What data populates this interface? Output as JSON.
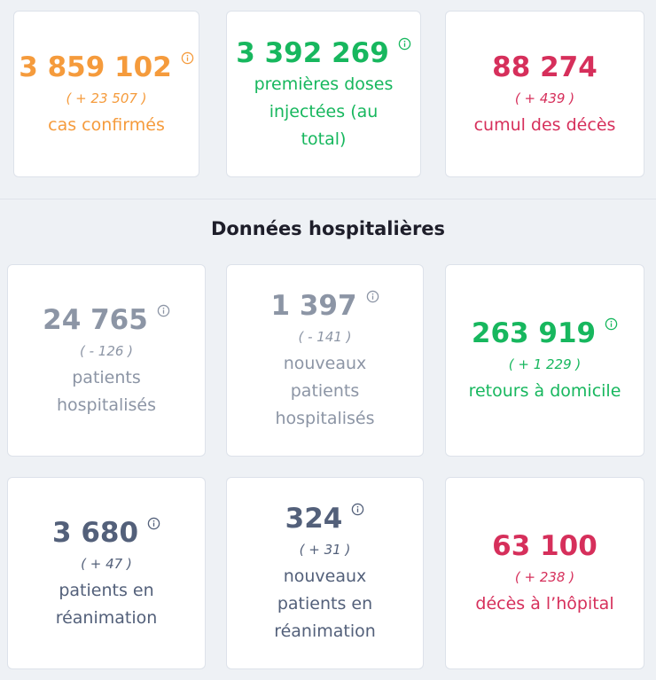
{
  "top_cards": [
    {
      "value": "3 859 102",
      "delta": "( + 23 507 )",
      "label": "cas confirmés",
      "color": "#f59b3c",
      "info": true
    },
    {
      "value": "3 392 269",
      "label": "premières doses injectées (au total)",
      "color": "#17b75e",
      "info": true
    },
    {
      "value": "88 274",
      "delta": "( + 439 )",
      "label": "cumul des décès",
      "color": "#d62f5b",
      "info": false
    }
  ],
  "section_title": "Données hospitalières",
  "hospital_cards": [
    {
      "value": "24 765",
      "delta": "( - 126 )",
      "label": "patients hospitalisés",
      "color": "#8c95a5",
      "info": true
    },
    {
      "value": "1 397",
      "delta": "( - 141 )",
      "label": "nouveaux patients hospitalisés",
      "color": "#8c95a5",
      "info": true
    },
    {
      "value": "263 919",
      "delta": "( + 1 229 )",
      "label": "retours à domicile",
      "color": "#17b75e",
      "info": true
    },
    {
      "value": "3 680",
      "delta": "( + 47 )",
      "label": "patients en réanimation",
      "color": "#53607a",
      "info": true
    },
    {
      "value": "324",
      "delta": "( + 31 )",
      "label": "nouveaux patients en réanimation",
      "color": "#53607a",
      "info": true
    },
    {
      "value": "63 100",
      "delta": "( + 238 )",
      "label": "décès à l’hôpital",
      "color": "#d62f5b",
      "info": false
    }
  ]
}
